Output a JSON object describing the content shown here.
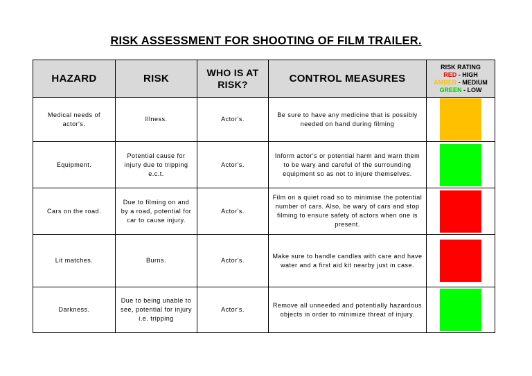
{
  "title": "RISK ASSESSMENT FOR SHOOTING OF FILM TRAILER.",
  "headers": {
    "hazard": "HAZARD",
    "risk": "RISK",
    "who": "WHO IS AT RISK?",
    "control": "CONTROL MEASURES",
    "rating_title": "RISK RATING",
    "red_word": "RED",
    "red_level": " - HIGH",
    "amber_word": "AMBER",
    "amber_level": " - MEDIUM",
    "green_word": "GREEN",
    "green_level": " - LOW"
  },
  "colors": {
    "red": "#ff0000",
    "amber": "#ffc000",
    "green": "#00ff00"
  },
  "rows": [
    {
      "hazard": "Medical needs of actor's.",
      "risk": "Illness.",
      "who": "Actor's.",
      "control": "Be sure to have any medicine that is possibly needed on hand during filming",
      "rating": "amber"
    },
    {
      "hazard": "Equipment.",
      "risk": "Potential cause for injury due to tripping e.c.t.",
      "who": "Actor's.",
      "control": "Inform actor's or potential harm and warn them to be wary and careful of the surrounding equipment so as not to injure themselves.",
      "rating": "green"
    },
    {
      "hazard": "Cars on the road.",
      "risk": "Due to filming on and by a road, potential for car to cause injury.",
      "who": "Actor's.",
      "control": "Film on a quiet road so to minimise the potential number of cars. Also, be wary of cars and stop filming to ensure safety of actors when one is present.",
      "rating": "red"
    },
    {
      "hazard": "Lit matches.",
      "risk": "Burns.",
      "who": "Actor's.",
      "control": "Make sure to handle candles with care and have water and a first aid kit nearby just in case.",
      "rating": "red"
    },
    {
      "hazard": "Darkness.",
      "risk": "Due to being unable to see, potential for injury i.e. tripping",
      "who": "Actor's.",
      "control": "Remove all unneeded and potentially hazardous objects in order to minimize threat of injury.",
      "rating": "green"
    }
  ]
}
